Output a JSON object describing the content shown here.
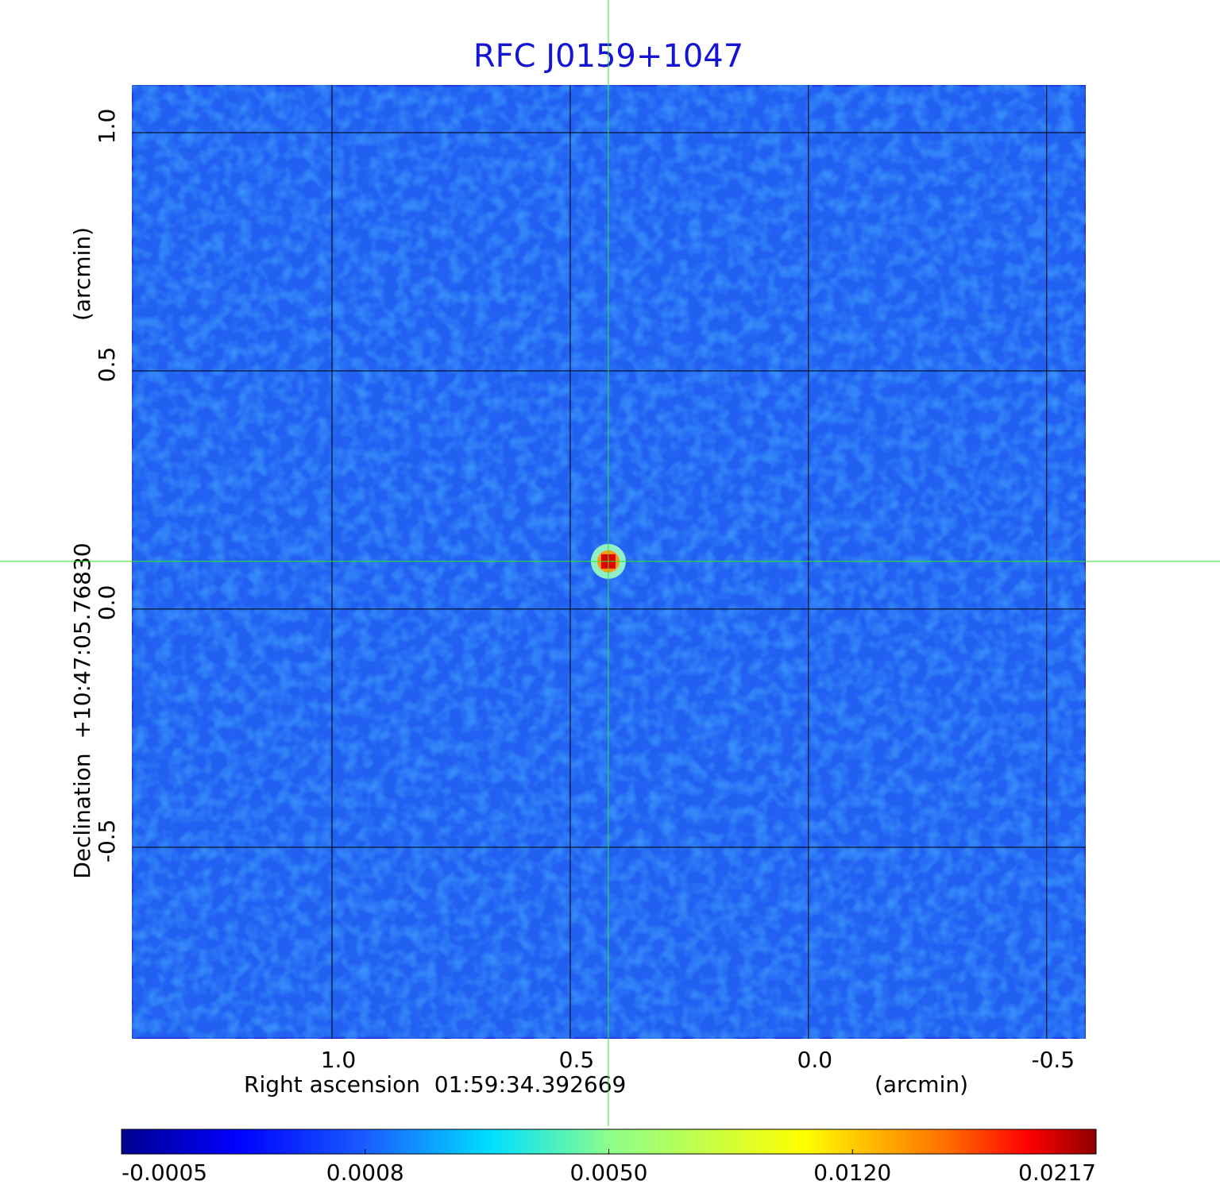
{
  "chart_data": {
    "type": "image",
    "title": "RFC J0159+1047",
    "x_label": "Right ascension  01:59:34.392669",
    "x_unit": "(arcmin)",
    "y_label": "Declination  +10:47:05.76830",
    "y_unit": "(arcmin)",
    "xlim": [
      1.42,
      -0.582
    ],
    "ylim": [
      -0.902,
      1.1
    ],
    "xticks": [
      {
        "value": 1,
        "label": "1.0"
      },
      {
        "value": 0.5,
        "label": "0.5"
      },
      {
        "value": 0,
        "label": "0.0"
      },
      {
        "value": -0.5,
        "label": "-0.5"
      }
    ],
    "yticks": [
      {
        "value": 1,
        "label": "1.0"
      },
      {
        "value": 0.5,
        "label": "0.5"
      },
      {
        "value": 0,
        "label": "0.0"
      },
      {
        "value": -0.5,
        "label": "-0.5"
      }
    ],
    "grid": true,
    "colormap": "jet",
    "colorbar": {
      "lim": [
        -0.0005,
        0.0217
      ],
      "ticks": [
        {
          "value": -0.0005,
          "label": "-0.0005"
        },
        {
          "value": 0.0008,
          "label": "0.0008"
        },
        {
          "value": 0.005,
          "label": "0.0050"
        },
        {
          "value": 0.012,
          "label": "0.0120"
        },
        {
          "value": 0.0217,
          "label": "0.0217"
        }
      ]
    },
    "sources": [
      {
        "x": 0.42,
        "y": 0.1,
        "value": 0.0217
      }
    ]
  }
}
